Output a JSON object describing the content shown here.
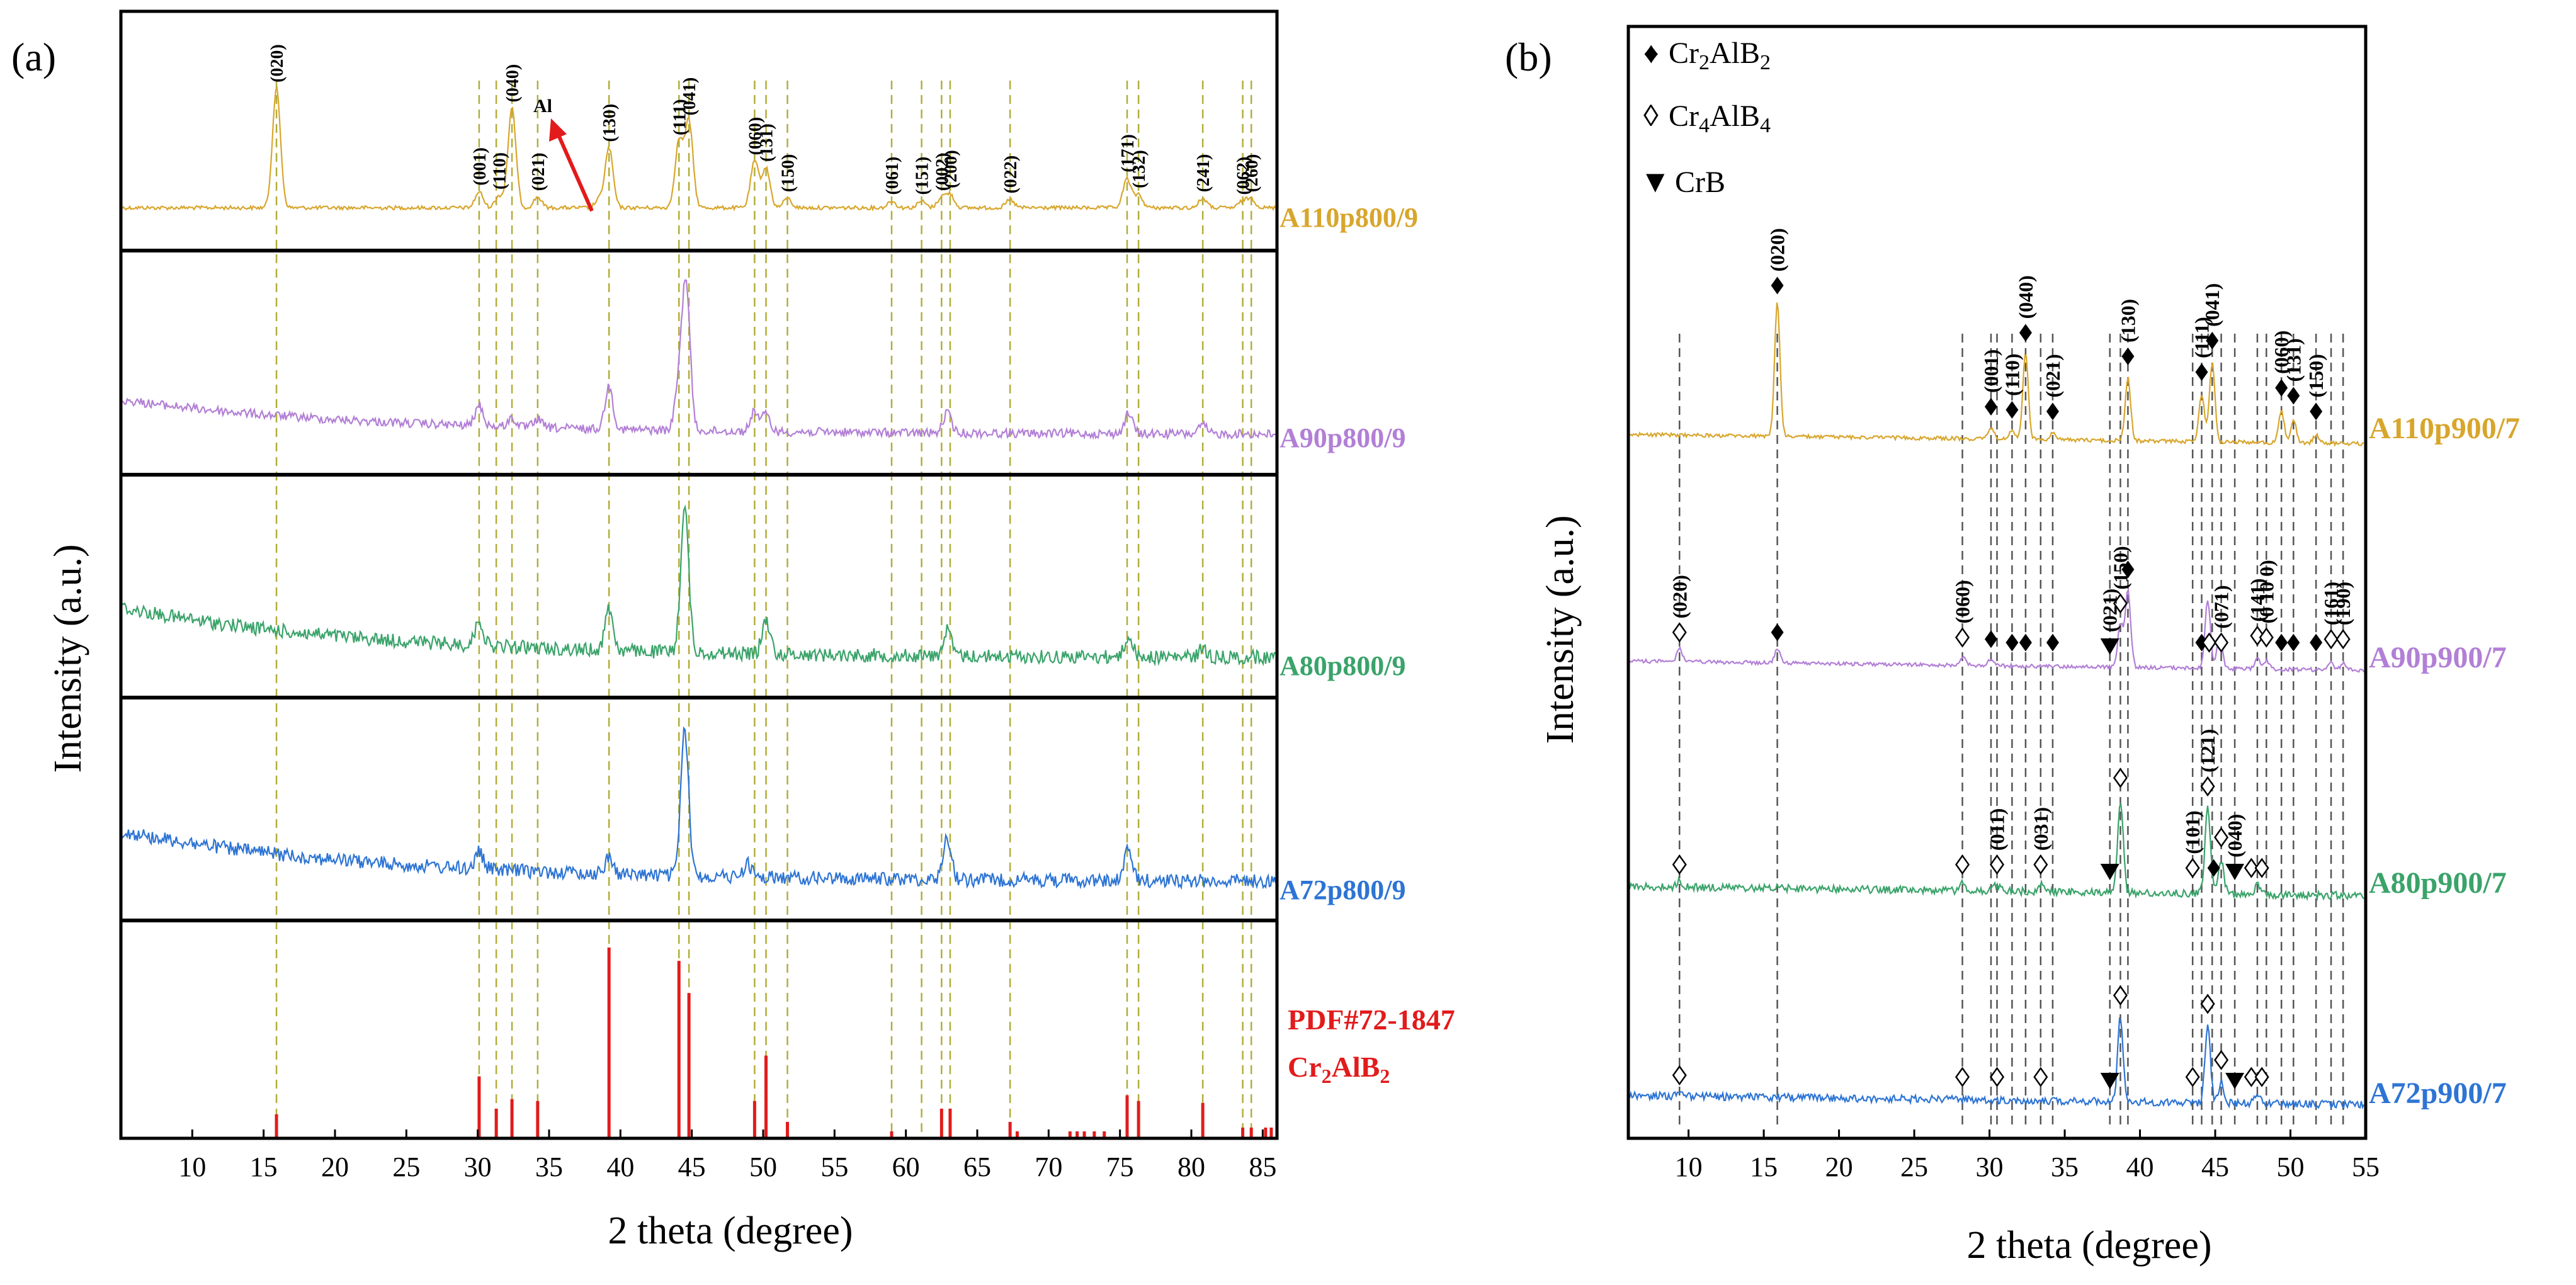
{
  "figure": {
    "panel_a_letter": "(a)",
    "panel_b_letter": "(b)"
  },
  "chart_data": [
    {
      "type": "line",
      "panel": "(a)",
      "xlabel": "2 theta (degree)",
      "ylabel": "Intensity (a.u.)",
      "xlim": [
        5,
        86
      ],
      "xticks": [
        10,
        15,
        20,
        25,
        30,
        35,
        40,
        45,
        50,
        55,
        60,
        65,
        70,
        75,
        80,
        85
      ],
      "colors": {
        "A110": "#d8a62d",
        "A90": "#b27fd6",
        "A80": "#3aa36a",
        "A72": "#2d74d4",
        "ref": "#e21b1b",
        "guide": "#b2ad3c"
      },
      "series": [
        {
          "name": "A110p800/9",
          "color": "#d8a62d",
          "baseline": "flat",
          "noise": "low",
          "peaks": [
            {
              "x": 15.9,
              "h": 0.9
            },
            {
              "x": 30.1,
              "h": 0.12
            },
            {
              "x": 31.5,
              "h": 0.09
            },
            {
              "x": 32.4,
              "h": 0.75
            },
            {
              "x": 34.2,
              "h": 0.08
            },
            {
              "x": 38.5,
              "h": 0.06
            },
            {
              "x": 39.2,
              "h": 0.45
            },
            {
              "x": 44.1,
              "h": 0.5
            },
            {
              "x": 44.8,
              "h": 0.65
            },
            {
              "x": 49.4,
              "h": 0.35
            },
            {
              "x": 50.2,
              "h": 0.3
            },
            {
              "x": 51.7,
              "h": 0.07
            },
            {
              "x": 59.0,
              "h": 0.05
            },
            {
              "x": 61.1,
              "h": 0.05
            },
            {
              "x": 62.5,
              "h": 0.08
            },
            {
              "x": 63.1,
              "h": 0.1
            },
            {
              "x": 67.3,
              "h": 0.06
            },
            {
              "x": 75.5,
              "h": 0.22
            },
            {
              "x": 76.3,
              "h": 0.1
            },
            {
              "x": 80.8,
              "h": 0.07
            },
            {
              "x": 83.6,
              "h": 0.05
            },
            {
              "x": 84.2,
              "h": 0.07
            }
          ],
          "peak_labels": [
            {
              "x": 15.9,
              "label": "(020)"
            },
            {
              "x": 30.1,
              "label": "(001)"
            },
            {
              "x": 31.5,
              "label": "(110)"
            },
            {
              "x": 32.4,
              "label": "(040)"
            },
            {
              "x": 34.2,
              "label": "(021)"
            },
            {
              "x": 39.2,
              "label": "(130)"
            },
            {
              "x": 44.1,
              "label": "(111)"
            },
            {
              "x": 44.8,
              "label": "(041)"
            },
            {
              "x": 49.4,
              "label": "(060)"
            },
            {
              "x": 50.2,
              "label": "(131)"
            },
            {
              "x": 51.7,
              "label": "(150)"
            },
            {
              "x": 59.0,
              "label": "(061)"
            },
            {
              "x": 61.1,
              "label": "(151)"
            },
            {
              "x": 62.5,
              "label": "(002)"
            },
            {
              "x": 63.1,
              "label": "(200)"
            },
            {
              "x": 67.3,
              "label": "(022)"
            },
            {
              "x": 75.5,
              "label": "(171)"
            },
            {
              "x": 76.3,
              "label": "(132)"
            },
            {
              "x": 80.8,
              "label": "(241)"
            },
            {
              "x": 83.6,
              "label": "(062)"
            },
            {
              "x": 84.2,
              "label": "(260)"
            }
          ],
          "annotation": {
            "text": "Al",
            "x": 38.5
          }
        },
        {
          "name": "A90p800/9",
          "color": "#b27fd6",
          "baseline": "slope-mild",
          "noise": "medium",
          "peaks": [
            {
              "x": 30.1,
              "h": 0.12
            },
            {
              "x": 32.4,
              "h": 0.05
            },
            {
              "x": 34.2,
              "h": 0.05
            },
            {
              "x": 39.2,
              "h": 0.25
            },
            {
              "x": 44.1,
              "h": 0.25
            },
            {
              "x": 44.6,
              "h": 0.85
            },
            {
              "x": 49.4,
              "h": 0.12
            },
            {
              "x": 50.2,
              "h": 0.1
            },
            {
              "x": 62.9,
              "h": 0.12
            },
            {
              "x": 75.6,
              "h": 0.12
            },
            {
              "x": 80.8,
              "h": 0.05
            }
          ]
        },
        {
          "name": "A80p800/9",
          "color": "#3aa36a",
          "baseline": "slope-steep",
          "noise": "high",
          "peaks": [
            {
              "x": 30.1,
              "h": 0.15
            },
            {
              "x": 39.2,
              "h": 0.25
            },
            {
              "x": 44.5,
              "h": 0.85
            },
            {
              "x": 50.2,
              "h": 0.2
            },
            {
              "x": 62.9,
              "h": 0.15
            },
            {
              "x": 75.6,
              "h": 0.12
            },
            {
              "x": 80.8,
              "h": 0.05
            }
          ]
        },
        {
          "name": "A72p800/9",
          "color": "#2d74d4",
          "baseline": "slope-steep",
          "noise": "high",
          "peaks": [
            {
              "x": 30.1,
              "h": 0.1
            },
            {
              "x": 39.2,
              "h": 0.1
            },
            {
              "x": 44.5,
              "h": 0.85
            },
            {
              "x": 48.9,
              "h": 0.08
            },
            {
              "x": 62.9,
              "h": 0.25
            },
            {
              "x": 75.6,
              "h": 0.18
            }
          ]
        }
      ],
      "reference": {
        "label_line1": "PDF#72-1847",
        "label_line2": "Cr",
        "label_line2_sub": "2",
        "label_line2_mid": "AlB",
        "label_line2_sub2": "2",
        "sticks": [
          {
            "x": 15.9,
            "h": 0.12
          },
          {
            "x": 30.1,
            "h": 0.32
          },
          {
            "x": 31.3,
            "h": 0.15
          },
          {
            "x": 32.4,
            "h": 0.2
          },
          {
            "x": 34.2,
            "h": 0.19
          },
          {
            "x": 39.2,
            "h": 1.0
          },
          {
            "x": 44.1,
            "h": 0.93
          },
          {
            "x": 44.8,
            "h": 0.76
          },
          {
            "x": 49.4,
            "h": 0.19
          },
          {
            "x": 50.2,
            "h": 0.43
          },
          {
            "x": 51.7,
            "h": 0.08
          },
          {
            "x": 59.0,
            "h": 0.03
          },
          {
            "x": 62.5,
            "h": 0.15
          },
          {
            "x": 63.1,
            "h": 0.15
          },
          {
            "x": 67.3,
            "h": 0.08
          },
          {
            "x": 67.8,
            "h": 0.03
          },
          {
            "x": 71.5,
            "h": 0.03
          },
          {
            "x": 72.0,
            "h": 0.03
          },
          {
            "x": 72.5,
            "h": 0.03
          },
          {
            "x": 73.2,
            "h": 0.03
          },
          {
            "x": 73.9,
            "h": 0.03
          },
          {
            "x": 75.5,
            "h": 0.22
          },
          {
            "x": 76.3,
            "h": 0.19
          },
          {
            "x": 80.8,
            "h": 0.18
          },
          {
            "x": 83.6,
            "h": 0.05
          },
          {
            "x": 84.2,
            "h": 0.05
          },
          {
            "x": 85.2,
            "h": 0.05
          },
          {
            "x": 85.6,
            "h": 0.05
          }
        ]
      },
      "guide_lines_x": [
        15.9,
        30.1,
        31.3,
        32.4,
        34.2,
        39.2,
        44.1,
        44.8,
        49.4,
        50.2,
        51.7,
        59.0,
        61.1,
        62.5,
        63.1,
        67.3,
        75.5,
        76.3,
        80.8,
        83.6,
        84.2
      ]
    },
    {
      "type": "line",
      "panel": "(b)",
      "xlabel": "2 theta (degree)",
      "ylabel": "Intensity (a.u.)",
      "xlim": [
        6,
        55
      ],
      "xticks": [
        10,
        15,
        20,
        25,
        30,
        35,
        40,
        45,
        50,
        55
      ],
      "xtick_labels": [
        "10",
        "15",
        "20",
        "25",
        "30",
        "35",
        "40",
        "45",
        "50",
        "55"
      ],
      "legend": {
        "position": "top-left",
        "entries": [
          {
            "marker": "filled-diamond",
            "symbol": "♦",
            "text": "Cr",
            "sub1": "2",
            "mid": "AlB",
            "sub2": "2"
          },
          {
            "marker": "open-diamond",
            "symbol": "◊",
            "text": "Cr",
            "sub1": "4",
            "mid": "AlB",
            "sub2": "4"
          },
          {
            "marker": "filled-triangle",
            "symbol": "▼",
            "text": "CrB"
          }
        ]
      },
      "series": [
        {
          "name": "A110p900/7",
          "color": "#d8a62d",
          "noise": "low",
          "peaks": [
            {
              "x": 15.9,
              "h": 0.85
            },
            {
              "x": 30.1,
              "h": 0.08
            },
            {
              "x": 31.5,
              "h": 0.06
            },
            {
              "x": 32.4,
              "h": 0.55
            },
            {
              "x": 34.2,
              "h": 0.05
            },
            {
              "x": 39.2,
              "h": 0.4
            },
            {
              "x": 44.1,
              "h": 0.3
            },
            {
              "x": 44.8,
              "h": 0.5
            },
            {
              "x": 49.4,
              "h": 0.2
            },
            {
              "x": 50.2,
              "h": 0.15
            },
            {
              "x": 51.7,
              "h": 0.05
            }
          ],
          "markers": [
            {
              "x": 15.9,
              "type": "filled",
              "label": "(020)"
            },
            {
              "x": 30.1,
              "type": "filled",
              "label": "(001)"
            },
            {
              "x": 31.5,
              "type": "filled",
              "label": "(110)"
            },
            {
              "x": 32.4,
              "type": "filled",
              "label": "(040)"
            },
            {
              "x": 34.2,
              "type": "filled",
              "label": "(021)"
            },
            {
              "x": 39.2,
              "type": "filled",
              "label": "(130)"
            },
            {
              "x": 44.1,
              "type": "filled",
              "label": "(111)"
            },
            {
              "x": 44.8,
              "type": "filled",
              "label": "(041)"
            },
            {
              "x": 49.4,
              "type": "filled",
              "label": "(060)"
            },
            {
              "x": 50.2,
              "type": "filled",
              "label": "(131)"
            },
            {
              "x": 51.7,
              "type": "filled",
              "label": "(150)"
            }
          ]
        },
        {
          "name": "A90p900/7",
          "color": "#b27fd6",
          "noise": "low",
          "peaks": [
            {
              "x": 9.4,
              "h": 0.08
            },
            {
              "x": 15.9,
              "h": 0.08
            },
            {
              "x": 28.2,
              "h": 0.05
            },
            {
              "x": 30.1,
              "h": 0.04
            },
            {
              "x": 38.7,
              "h": 0.25
            },
            {
              "x": 39.2,
              "h": 0.45
            },
            {
              "x": 44.5,
              "h": 0.4
            },
            {
              "x": 45.3,
              "h": 0.2
            },
            {
              "x": 47.8,
              "h": 0.06
            },
            {
              "x": 48.4,
              "h": 0.05
            },
            {
              "x": 52.7,
              "h": 0.04
            },
            {
              "x": 53.5,
              "h": 0.04
            }
          ],
          "markers": [
            {
              "x": 9.4,
              "type": "open",
              "label": "(020)"
            },
            {
              "x": 15.9,
              "type": "filled"
            },
            {
              "x": 28.2,
              "type": "open",
              "label": "(060)"
            },
            {
              "x": 30.1,
              "type": "filled"
            },
            {
              "x": 31.5,
              "type": "filled"
            },
            {
              "x": 32.4,
              "type": "filled"
            },
            {
              "x": 34.2,
              "type": "filled"
            },
            {
              "x": 38.0,
              "type": "triangle",
              "label": "(021)"
            },
            {
              "x": 38.7,
              "type": "open",
              "label": "(150)"
            },
            {
              "x": 39.2,
              "type": "filled"
            },
            {
              "x": 44.1,
              "type": "filled"
            },
            {
              "x": 44.6,
              "type": "open"
            },
            {
              "x": 45.4,
              "type": "open",
              "label": "(071)"
            },
            {
              "x": 47.8,
              "type": "open",
              "label": "(141)"
            },
            {
              "x": 48.4,
              "type": "open",
              "label": "(0 10 0)"
            },
            {
              "x": 49.4,
              "type": "filled"
            },
            {
              "x": 50.2,
              "type": "filled"
            },
            {
              "x": 51.7,
              "type": "filled"
            },
            {
              "x": 52.7,
              "type": "open",
              "label": "(161)"
            },
            {
              "x": 53.5,
              "type": "open",
              "label": "(190)"
            }
          ]
        },
        {
          "name": "A80p900/7",
          "color": "#3aa36a",
          "noise": "medium",
          "peaks": [
            {
              "x": 9.4,
              "h": 0.04
            },
            {
              "x": 28.2,
              "h": 0.04
            },
            {
              "x": 30.5,
              "h": 0.04
            },
            {
              "x": 33.4,
              "h": 0.04
            },
            {
              "x": 38.7,
              "h": 0.55
            },
            {
              "x": 44.5,
              "h": 0.5
            },
            {
              "x": 45.4,
              "h": 0.2
            },
            {
              "x": 47.8,
              "h": 0.05
            }
          ],
          "markers": [
            {
              "x": 9.4,
              "type": "open"
            },
            {
              "x": 28.2,
              "type": "open"
            },
            {
              "x": 30.5,
              "type": "open",
              "label": "(011)"
            },
            {
              "x": 33.4,
              "type": "open",
              "label": "(031)"
            },
            {
              "x": 38.0,
              "type": "triangle"
            },
            {
              "x": 38.7,
              "type": "open"
            },
            {
              "x": 43.5,
              "type": "open",
              "label": "(101)"
            },
            {
              "x": 44.5,
              "type": "open",
              "label": "(121)"
            },
            {
              "x": 44.9,
              "type": "filled"
            },
            {
              "x": 45.4,
              "type": "open"
            },
            {
              "x": 46.3,
              "type": "triangle",
              "label": "(040)"
            },
            {
              "x": 47.4,
              "type": "open"
            },
            {
              "x": 48.1,
              "type": "open"
            }
          ]
        },
        {
          "name": "A72p900/7",
          "color": "#2d74d4",
          "noise": "medium",
          "peaks": [
            {
              "x": 9.4,
              "h": 0.03
            },
            {
              "x": 38.7,
              "h": 0.5
            },
            {
              "x": 44.5,
              "h": 0.45
            },
            {
              "x": 45.4,
              "h": 0.12
            },
            {
              "x": 47.8,
              "h": 0.04
            }
          ],
          "markers": [
            {
              "x": 9.4,
              "type": "open"
            },
            {
              "x": 28.2,
              "type": "open"
            },
            {
              "x": 30.5,
              "type": "open"
            },
            {
              "x": 33.4,
              "type": "open"
            },
            {
              "x": 38.0,
              "type": "triangle"
            },
            {
              "x": 38.7,
              "type": "open"
            },
            {
              "x": 43.5,
              "type": "open"
            },
            {
              "x": 44.5,
              "type": "open"
            },
            {
              "x": 45.4,
              "type": "open"
            },
            {
              "x": 46.3,
              "type": "triangle"
            },
            {
              "x": 47.4,
              "type": "open"
            },
            {
              "x": 48.1,
              "type": "open"
            }
          ]
        }
      ],
      "guide_lines_x": [
        9.4,
        15.9,
        28.2,
        30.1,
        30.5,
        31.5,
        32.4,
        33.4,
        34.2,
        38.0,
        38.7,
        39.2,
        43.5,
        44.1,
        44.8,
        45.4,
        46.3,
        47.8,
        48.4,
        49.4,
        50.2,
        51.7,
        52.7,
        53.5
      ]
    }
  ]
}
